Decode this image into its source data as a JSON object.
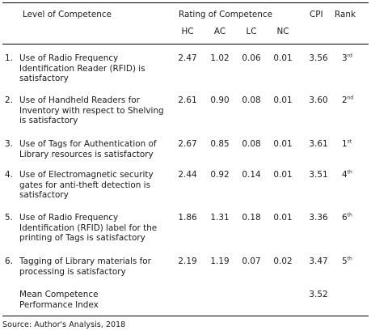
{
  "table": {
    "headers": {
      "level": "Level of Competence",
      "rating": "Rating of Competence",
      "cpi": "CPI",
      "rank": "Rank",
      "sub": [
        "HC",
        "AC",
        "LC",
        "NC"
      ]
    },
    "rows": [
      {
        "num": "1.",
        "desc": "Use of Radio Frequency Identification Reader (RFID) is satisfactory",
        "hc": "2.47",
        "ac": "1.02",
        "lc": "0.06",
        "nc": "0.01",
        "cpi": "3.56",
        "rank_n": "3",
        "rank_sfx": "rd"
      },
      {
        "num": "2.",
        "desc": "Use of Handheld Readers for Inventory with respect to Shelving is satisfactory",
        "hc": "2.61",
        "ac": "0.90",
        "lc": "0.08",
        "nc": "0.01",
        "cpi": "3.60",
        "rank_n": "2",
        "rank_sfx": "nd"
      },
      {
        "num": "3.",
        "desc": "Use of Tags for Authentication of Library resources is satisfactory",
        "hc": "2.67",
        "ac": "0.85",
        "lc": "0.08",
        "nc": "0.01",
        "cpi": "3.61",
        "rank_n": "1",
        "rank_sfx": "st"
      },
      {
        "num": "4.",
        "desc": "Use of Electromagnetic security gates for anti-theft detection is satisfactory",
        "hc": "2.44",
        "ac": "0.92",
        "lc": "0.14",
        "nc": "0.01",
        "cpi": "3.51",
        "rank_n": "4",
        "rank_sfx": "th"
      },
      {
        "num": "5.",
        "desc": "Use of Radio Frequency Identification (RFID) label for the printing of Tags is satisfactory",
        "hc": "1.86",
        "ac": "1.31",
        "lc": "0.18",
        "nc": "0.01",
        "cpi": "3.36",
        "rank_n": "6",
        "rank_sfx": "th"
      },
      {
        "num": "6.",
        "desc": "Tagging of Library materials for processing is satisfactory",
        "hc": "2.19",
        "ac": "1.19",
        "lc": "0.07",
        "nc": "0.02",
        "cpi": "3.47",
        "rank_n": "5",
        "rank_sfx": "th"
      }
    ],
    "mean": {
      "label": "Mean Competence Performance Index",
      "cpi": "3.52"
    }
  },
  "source": "Source: Author's Analysis, 2018"
}
